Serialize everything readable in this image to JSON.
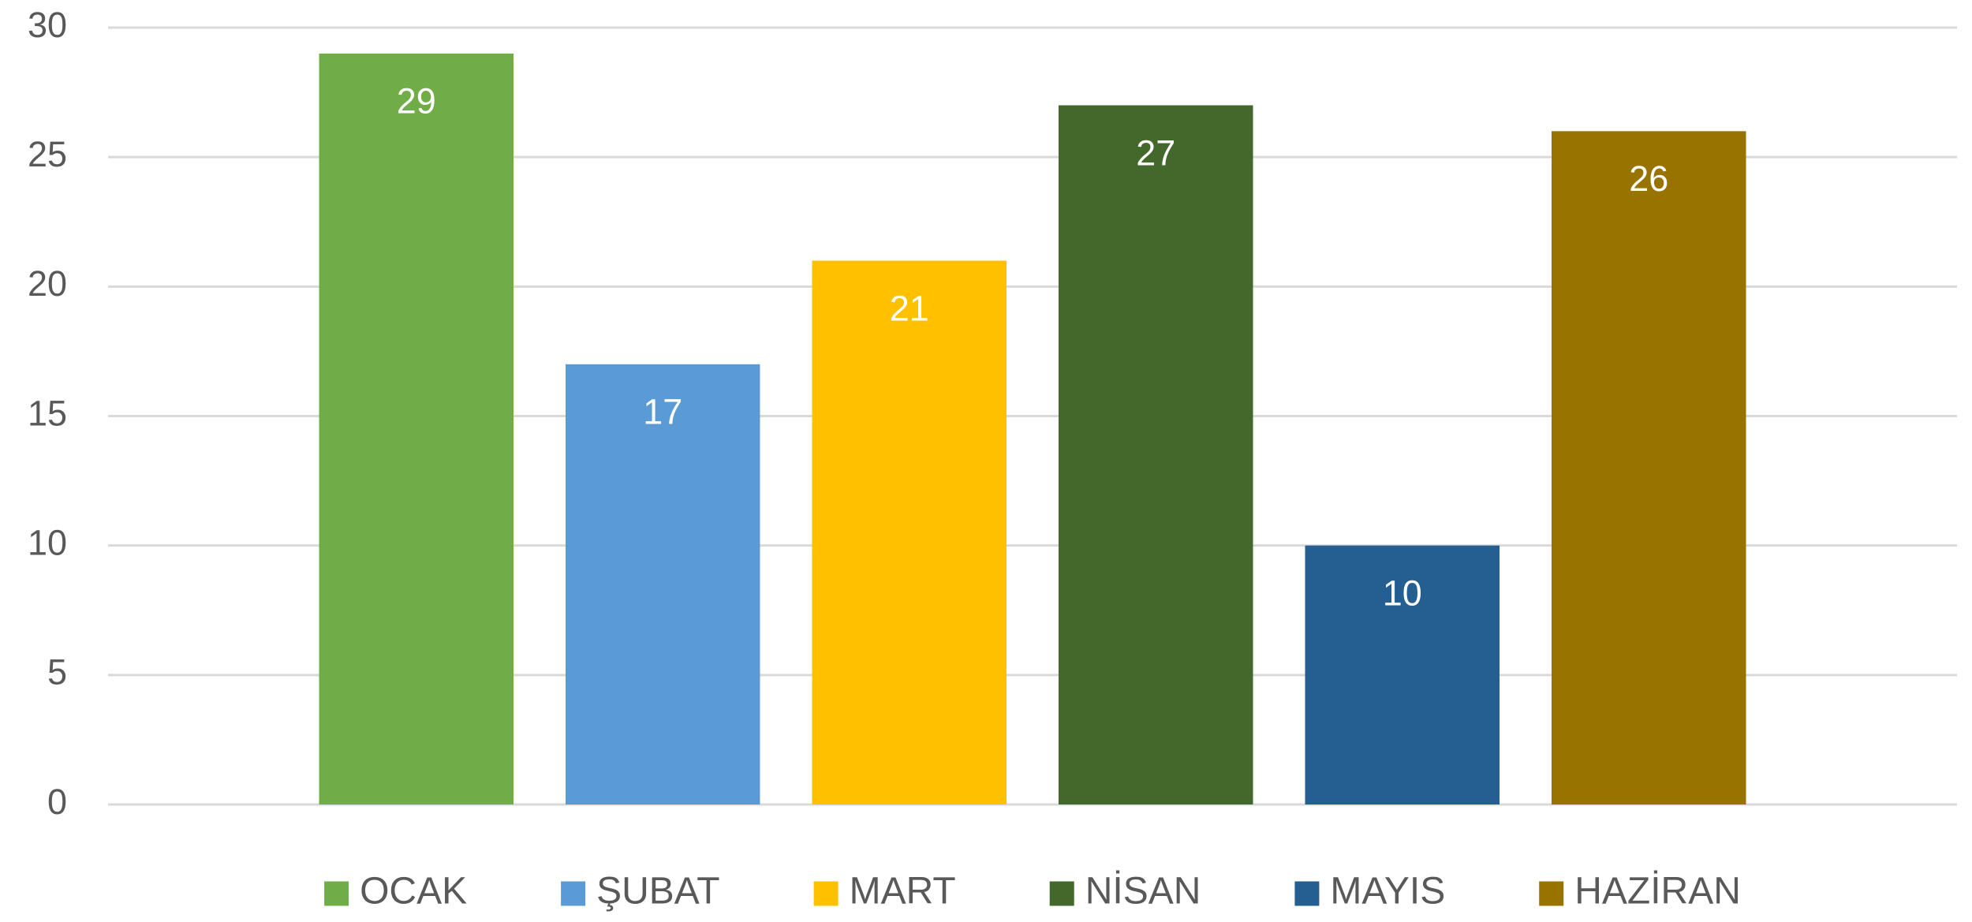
{
  "chart_data": {
    "type": "bar",
    "categories": [
      null
    ],
    "series": [
      {
        "name": "OCAK",
        "color": "#70ad47",
        "values": [
          29
        ]
      },
      {
        "name": "ŞUBAT",
        "color": "#5b9bd5",
        "values": [
          17
        ]
      },
      {
        "name": "MART",
        "color": "#ffc000",
        "values": [
          21
        ]
      },
      {
        "name": "NİSAN",
        "color": "#43682b",
        "values": [
          27
        ]
      },
      {
        "name": "MAYIS",
        "color": "#255e91",
        "values": [
          10
        ]
      },
      {
        "name": "HAZİRAN",
        "color": "#997300",
        "values": [
          26
        ]
      }
    ],
    "ylim": [
      0,
      30
    ],
    "yticks": [
      0,
      5,
      10,
      15,
      20,
      25,
      30
    ],
    "grid": true,
    "legend": "bottom"
  }
}
